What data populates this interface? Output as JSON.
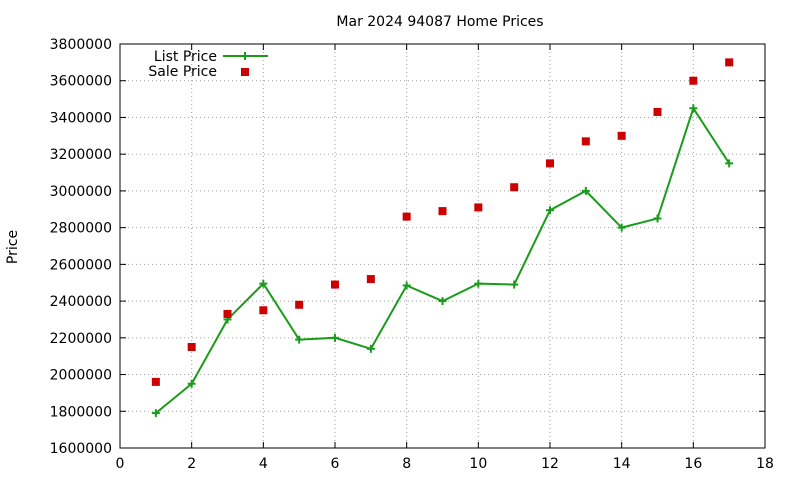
{
  "chart_data": {
    "type": "line",
    "title": "Mar 2024 94087 Home Prices",
    "xlabel": "",
    "ylabel": "Price",
    "xlim": [
      0,
      18
    ],
    "ylim": [
      1600000,
      3800000
    ],
    "x_ticks": [
      0,
      2,
      4,
      6,
      8,
      10,
      12,
      14,
      16,
      18
    ],
    "y_ticks": [
      1600000,
      1800000,
      2000000,
      2200000,
      2400000,
      2600000,
      2800000,
      3000000,
      3200000,
      3400000,
      3600000,
      3800000
    ],
    "grid": true,
    "legend_position": "top-left",
    "series": [
      {
        "name": "List Price",
        "style": "line+plus",
        "color": "#1a9c1a",
        "x": [
          1,
          2,
          3,
          4,
          5,
          6,
          7,
          8,
          9,
          10,
          11,
          12,
          13,
          14,
          15,
          16,
          17
        ],
        "values": [
          1790000,
          1950000,
          2300000,
          2495000,
          2190000,
          2200000,
          2140000,
          2485000,
          2400000,
          2495000,
          2490000,
          2895000,
          3000000,
          2800000,
          2850000,
          3450000,
          3150000
        ]
      },
      {
        "name": "Sale Price",
        "style": "square-markers",
        "color": "#cc0000",
        "x": [
          1,
          2,
          3,
          4,
          5,
          6,
          7,
          8,
          9,
          10,
          11,
          12,
          13,
          14,
          15,
          16,
          17
        ],
        "values": [
          1960000,
          2150000,
          2330000,
          2350000,
          2380000,
          2490000,
          2520000,
          2860000,
          2890000,
          2910000,
          3020000,
          3150000,
          3270000,
          3300000,
          3430000,
          3600000,
          3700000
        ]
      }
    ]
  }
}
